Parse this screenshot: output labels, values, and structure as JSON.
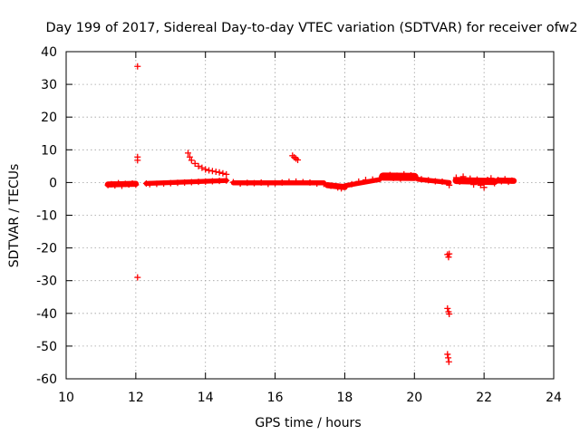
{
  "chart_data": {
    "type": "scatter",
    "title": "Day 199 of 2017, Sidereal Day-to-day VTEC variation (SDTVAR) for receiver ofw2",
    "xlabel": "GPS time / hours",
    "ylabel": "SDTVAR / TECUs",
    "xlim": [
      10,
      24
    ],
    "ylim": [
      -60,
      40
    ],
    "xticks": [
      10,
      12,
      14,
      16,
      18,
      20,
      22,
      24
    ],
    "yticks": [
      40,
      30,
      20,
      10,
      0,
      -10,
      -20,
      -30,
      -40,
      -50,
      -60
    ],
    "grid": true,
    "marker": "+",
    "series": [
      {
        "name": "SDTVAR",
        "color": "#ff0000",
        "points": [
          [
            11.2,
            -0.8
          ],
          [
            11.3,
            -0.5
          ],
          [
            11.4,
            -0.9
          ],
          [
            11.5,
            -0.2
          ],
          [
            11.6,
            -1.0
          ],
          [
            11.7,
            -0.4
          ],
          [
            11.8,
            -0.6
          ],
          [
            11.9,
            -0.3
          ],
          [
            12.0,
            -0.7
          ],
          [
            12.05,
            35.5
          ],
          [
            12.05,
            7.8
          ],
          [
            12.05,
            6.8
          ],
          [
            12.05,
            -29.0
          ],
          [
            12.3,
            -0.3
          ],
          [
            12.4,
            -0.5
          ],
          [
            12.6,
            -0.4
          ],
          [
            12.8,
            -0.3
          ],
          [
            13.0,
            -0.2
          ],
          [
            13.2,
            -0.1
          ],
          [
            13.4,
            0.0
          ],
          [
            13.6,
            0.1
          ],
          [
            13.8,
            0.2
          ],
          [
            14.0,
            0.3
          ],
          [
            14.2,
            0.4
          ],
          [
            14.4,
            0.5
          ],
          [
            14.6,
            0.6
          ],
          [
            13.5,
            9.0
          ],
          [
            13.55,
            7.8
          ],
          [
            13.6,
            6.8
          ],
          [
            13.7,
            5.8
          ],
          [
            13.8,
            5.0
          ],
          [
            13.9,
            4.5
          ],
          [
            14.0,
            4.0
          ],
          [
            14.1,
            3.7
          ],
          [
            14.2,
            3.5
          ],
          [
            14.3,
            3.3
          ],
          [
            14.4,
            3.1
          ],
          [
            14.5,
            2.8
          ],
          [
            14.6,
            2.5
          ],
          [
            14.8,
            0.1
          ],
          [
            15.0,
            -0.3
          ],
          [
            15.2,
            -0.1
          ],
          [
            15.4,
            -0.2
          ],
          [
            15.6,
            0.0
          ],
          [
            15.8,
            -0.4
          ],
          [
            16.0,
            -0.2
          ],
          [
            16.2,
            0.0
          ],
          [
            16.4,
            0.2
          ],
          [
            16.6,
            0.3
          ],
          [
            16.8,
            0.1
          ],
          [
            17.0,
            0.0
          ],
          [
            17.2,
            -0.3
          ],
          [
            17.4,
            -0.4
          ],
          [
            16.5,
            8.2
          ],
          [
            16.55,
            7.7
          ],
          [
            16.6,
            7.3
          ],
          [
            16.65,
            6.9
          ],
          [
            17.6,
            -1.0
          ],
          [
            17.8,
            -1.5
          ],
          [
            17.9,
            -1.8
          ],
          [
            18.0,
            -1.3
          ],
          [
            18.2,
            -0.5
          ],
          [
            18.4,
            0.3
          ],
          [
            18.6,
            0.8
          ],
          [
            18.8,
            0.9
          ],
          [
            19.0,
            1.0
          ],
          [
            19.2,
            1.8
          ],
          [
            19.3,
            2.3
          ],
          [
            19.4,
            1.4
          ],
          [
            19.5,
            2.1
          ],
          [
            19.6,
            1.2
          ],
          [
            19.7,
            2.5
          ],
          [
            19.8,
            1.7
          ],
          [
            19.9,
            2.2
          ],
          [
            20.0,
            1.5
          ],
          [
            20.2,
            1.0
          ],
          [
            20.4,
            0.7
          ],
          [
            20.6,
            0.4
          ],
          [
            20.8,
            0.3
          ],
          [
            21.0,
            -0.8
          ],
          [
            20.95,
            -22.0
          ],
          [
            20.98,
            -22.8
          ],
          [
            21.0,
            -21.8
          ],
          [
            20.95,
            -38.5
          ],
          [
            20.98,
            -39.5
          ],
          [
            21.0,
            -40.2
          ],
          [
            20.95,
            -52.5
          ],
          [
            20.97,
            -53.6
          ],
          [
            20.99,
            -54.8
          ],
          [
            21.2,
            1.5
          ],
          [
            21.3,
            0.3
          ],
          [
            21.4,
            1.8
          ],
          [
            21.5,
            0.5
          ],
          [
            21.6,
            1.2
          ],
          [
            21.7,
            -0.6
          ],
          [
            21.8,
            0.9
          ],
          [
            21.9,
            -0.8
          ],
          [
            22.0,
            -1.5
          ],
          [
            22.1,
            0.8
          ],
          [
            22.2,
            1.3
          ],
          [
            22.3,
            -0.2
          ],
          [
            22.4,
            0.8
          ],
          [
            22.5,
            0.4
          ],
          [
            22.6,
            1.0
          ],
          [
            22.7,
            0.2
          ],
          [
            22.8,
            0.6
          ]
        ]
      }
    ],
    "line_segments": [
      {
        "from": [
          11.2,
          -0.6
        ],
        "to": [
          12.0,
          -0.4
        ],
        "thickness": 2.2
      },
      {
        "from": [
          12.3,
          -0.3
        ],
        "to": [
          14.6,
          0.6
        ],
        "thickness": 1.8
      },
      {
        "from": [
          14.8,
          -0.1
        ],
        "to": [
          17.4,
          -0.1
        ],
        "thickness": 1.8
      },
      {
        "from": [
          17.5,
          -0.8
        ],
        "to": [
          18.0,
          -1.4
        ],
        "thickness": 2.2
      },
      {
        "from": [
          18.0,
          -1.0
        ],
        "to": [
          19.0,
          0.9
        ],
        "thickness": 1.8
      },
      {
        "from": [
          19.1,
          1.8
        ],
        "to": [
          20.0,
          1.7
        ],
        "thickness": 3.0
      },
      {
        "from": [
          20.1,
          1.0
        ],
        "to": [
          21.0,
          0.0
        ],
        "thickness": 1.8
      },
      {
        "from": [
          21.2,
          0.6
        ],
        "to": [
          22.3,
          0.3
        ],
        "thickness": 2.6
      },
      {
        "from": [
          22.4,
          0.6
        ],
        "to": [
          22.85,
          0.5
        ],
        "thickness": 2.2
      }
    ]
  }
}
